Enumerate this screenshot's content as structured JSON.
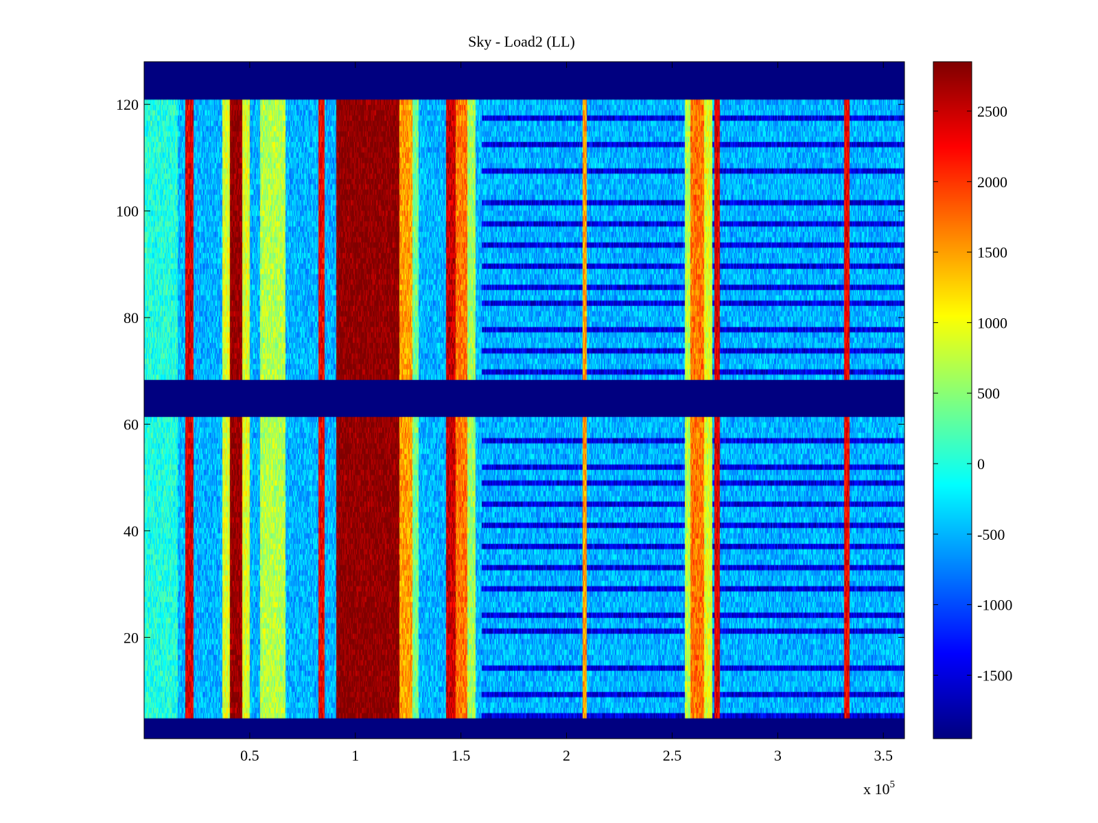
{
  "chart_data": {
    "type": "heatmap",
    "title": "Sky - Load2 (LL)",
    "xlabel": "",
    "ylabel": "",
    "xlim": [
      0,
      360000
    ],
    "ylim": [
      1,
      128
    ],
    "x_multiplier_label": "x 10",
    "x_multiplier_exponent": "5",
    "x_ticks": [
      {
        "value": 50000,
        "label": "0.5"
      },
      {
        "value": 100000,
        "label": "1"
      },
      {
        "value": 150000,
        "label": "1.5"
      },
      {
        "value": 200000,
        "label": "2"
      },
      {
        "value": 250000,
        "label": "2.5"
      },
      {
        "value": 300000,
        "label": "3"
      },
      {
        "value": 350000,
        "label": "3.5"
      }
    ],
    "y_ticks": [
      {
        "value": 20,
        "label": "20"
      },
      {
        "value": 40,
        "label": "40"
      },
      {
        "value": 60,
        "label": "60"
      },
      {
        "value": 80,
        "label": "80"
      },
      {
        "value": 100,
        "label": "100"
      },
      {
        "value": 120,
        "label": "120"
      }
    ],
    "colorbar": {
      "colormap": "jet",
      "range": [
        -1950,
        2850
      ],
      "ticks": [
        {
          "value": -1500,
          "label": "-1500"
        },
        {
          "value": -1000,
          "label": "-1000"
        },
        {
          "value": -500,
          "label": "-500"
        },
        {
          "value": 0,
          "label": "0"
        },
        {
          "value": 500,
          "label": "500"
        },
        {
          "value": 1000,
          "label": "1000"
        },
        {
          "value": 1500,
          "label": "1500"
        },
        {
          "value": 2000,
          "label": "2000"
        },
        {
          "value": 2500,
          "label": "2500"
        }
      ]
    },
    "masked_rows": [
      [
        1,
        4
      ],
      [
        62,
        68
      ],
      [
        122,
        128
      ]
    ],
    "background_level": -500,
    "noise_amplitude": 380,
    "bands": [
      {
        "x": [
          0,
          16000
        ],
        "level": 0
      },
      {
        "x": [
          19500,
          23500
        ],
        "level": 2400
      },
      {
        "x": [
          40500,
          46500
        ],
        "level": 2800
      },
      {
        "x": [
          37000,
          40500
        ],
        "level": 900
      },
      {
        "x": [
          46500,
          50000
        ],
        "level": 900
      },
      {
        "x": [
          55000,
          67000
        ],
        "level": 700
      },
      {
        "x": [
          82500,
          85500
        ],
        "level": 2300
      },
      {
        "x": [
          91000,
          121000
        ],
        "level": 2850
      },
      {
        "x": [
          121000,
          127000
        ],
        "level": 1500
      },
      {
        "x": [
          127000,
          130000
        ],
        "level": 400
      },
      {
        "x": [
          143000,
          147500
        ],
        "level": 2500
      },
      {
        "x": [
          147500,
          153000
        ],
        "level": 1700
      },
      {
        "x": [
          153000,
          157000
        ],
        "level": 600
      },
      {
        "x": [
          207500,
          209500
        ],
        "level": 1500
      },
      {
        "x": [
          256000,
          258500
        ],
        "level": 700
      },
      {
        "x": [
          258500,
          265000
        ],
        "level": 1700
      },
      {
        "x": [
          265000,
          269000
        ],
        "level": 900
      },
      {
        "x": [
          270000,
          272500
        ],
        "level": 2400
      },
      {
        "x": [
          331500,
          334000
        ],
        "level": 2300
      }
    ],
    "stripe_rows": [
      5,
      9,
      14,
      21,
      24,
      29,
      33,
      37,
      41,
      45,
      49,
      52,
      57,
      70,
      74,
      78,
      83,
      86,
      90,
      94,
      98,
      102,
      108,
      113,
      118
    ],
    "stripe_level": -1500
  }
}
